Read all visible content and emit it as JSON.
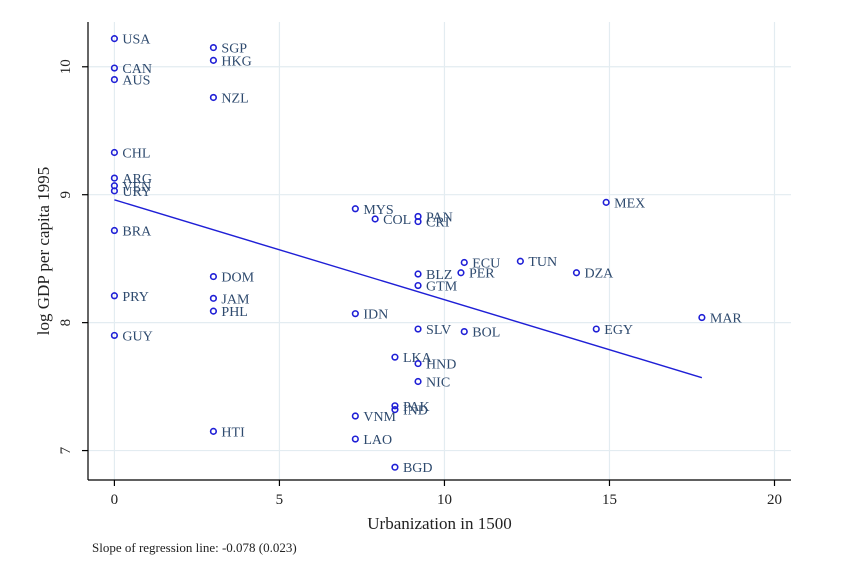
{
  "chart_data": {
    "type": "scatter",
    "xlabel": "Urbanization in 1500",
    "ylabel": "log GDP per capita 1995",
    "xlim": [
      -0.8,
      20.5
    ],
    "ylim": [
      6.77,
      10.35
    ],
    "xticks": [
      0,
      5,
      10,
      15,
      20
    ],
    "yticks": [
      7,
      8,
      9,
      10
    ],
    "grid": true,
    "regression": {
      "x": [
        0,
        17.8
      ],
      "y": [
        8.96,
        7.57
      ]
    },
    "note": "Slope of regression line: -0.078 (0.023)",
    "points": [
      {
        "label": "USA",
        "x": 0,
        "y": 10.22
      },
      {
        "label": "CAN",
        "x": 0,
        "y": 9.99
      },
      {
        "label": "AUS",
        "x": 0,
        "y": 9.9
      },
      {
        "label": "CHL",
        "x": 0,
        "y": 9.33
      },
      {
        "label": "ARG",
        "x": 0,
        "y": 9.13
      },
      {
        "label": "VEN",
        "x": 0,
        "y": 9.07
      },
      {
        "label": "URY",
        "x": 0,
        "y": 9.03
      },
      {
        "label": "BRA",
        "x": 0,
        "y": 8.72
      },
      {
        "label": "PRY",
        "x": 0,
        "y": 8.21
      },
      {
        "label": "GUY",
        "x": 0,
        "y": 7.9
      },
      {
        "label": "SGP",
        "x": 3,
        "y": 10.15
      },
      {
        "label": "HKG",
        "x": 3,
        "y": 10.05
      },
      {
        "label": "NZL",
        "x": 3,
        "y": 9.76
      },
      {
        "label": "DOM",
        "x": 3,
        "y": 8.36
      },
      {
        "label": "JAM",
        "x": 3,
        "y": 8.19
      },
      {
        "label": "PHL",
        "x": 3,
        "y": 8.09
      },
      {
        "label": "HTI",
        "x": 3,
        "y": 7.15
      },
      {
        "label": "MYS",
        "x": 7.3,
        "y": 8.89
      },
      {
        "label": "COL",
        "x": 7.9,
        "y": 8.81
      },
      {
        "label": "IDN",
        "x": 7.3,
        "y": 8.07
      },
      {
        "label": "VNM",
        "x": 7.3,
        "y": 7.27
      },
      {
        "label": "LAO",
        "x": 7.3,
        "y": 7.09
      },
      {
        "label": "PAN",
        "x": 9.2,
        "y": 8.83
      },
      {
        "label": "CRI",
        "x": 9.2,
        "y": 8.79
      },
      {
        "label": "LKA",
        "x": 8.5,
        "y": 7.73
      },
      {
        "label": "PAK",
        "x": 8.5,
        "y": 7.35
      },
      {
        "label": "IND",
        "x": 8.5,
        "y": 7.32
      },
      {
        "label": "BGD",
        "x": 8.5,
        "y": 6.87
      },
      {
        "label": "BLZ",
        "x": 9.2,
        "y": 8.38
      },
      {
        "label": "GTM",
        "x": 9.2,
        "y": 8.29
      },
      {
        "label": "SLV",
        "x": 9.2,
        "y": 7.95
      },
      {
        "label": "HND",
        "x": 9.2,
        "y": 7.68
      },
      {
        "label": "NIC",
        "x": 9.2,
        "y": 7.54
      },
      {
        "label": "ECU",
        "x": 10.6,
        "y": 8.47
      },
      {
        "label": "PER",
        "x": 10.5,
        "y": 8.39
      },
      {
        "label": "BOL",
        "x": 10.6,
        "y": 7.93
      },
      {
        "label": "TUN",
        "x": 12.3,
        "y": 8.48
      },
      {
        "label": "DZA",
        "x": 14.0,
        "y": 8.39
      },
      {
        "label": "MEX",
        "x": 14.9,
        "y": 8.94
      },
      {
        "label": "EGY",
        "x": 14.6,
        "y": 7.95
      },
      {
        "label": "MAR",
        "x": 17.8,
        "y": 8.04
      }
    ]
  }
}
